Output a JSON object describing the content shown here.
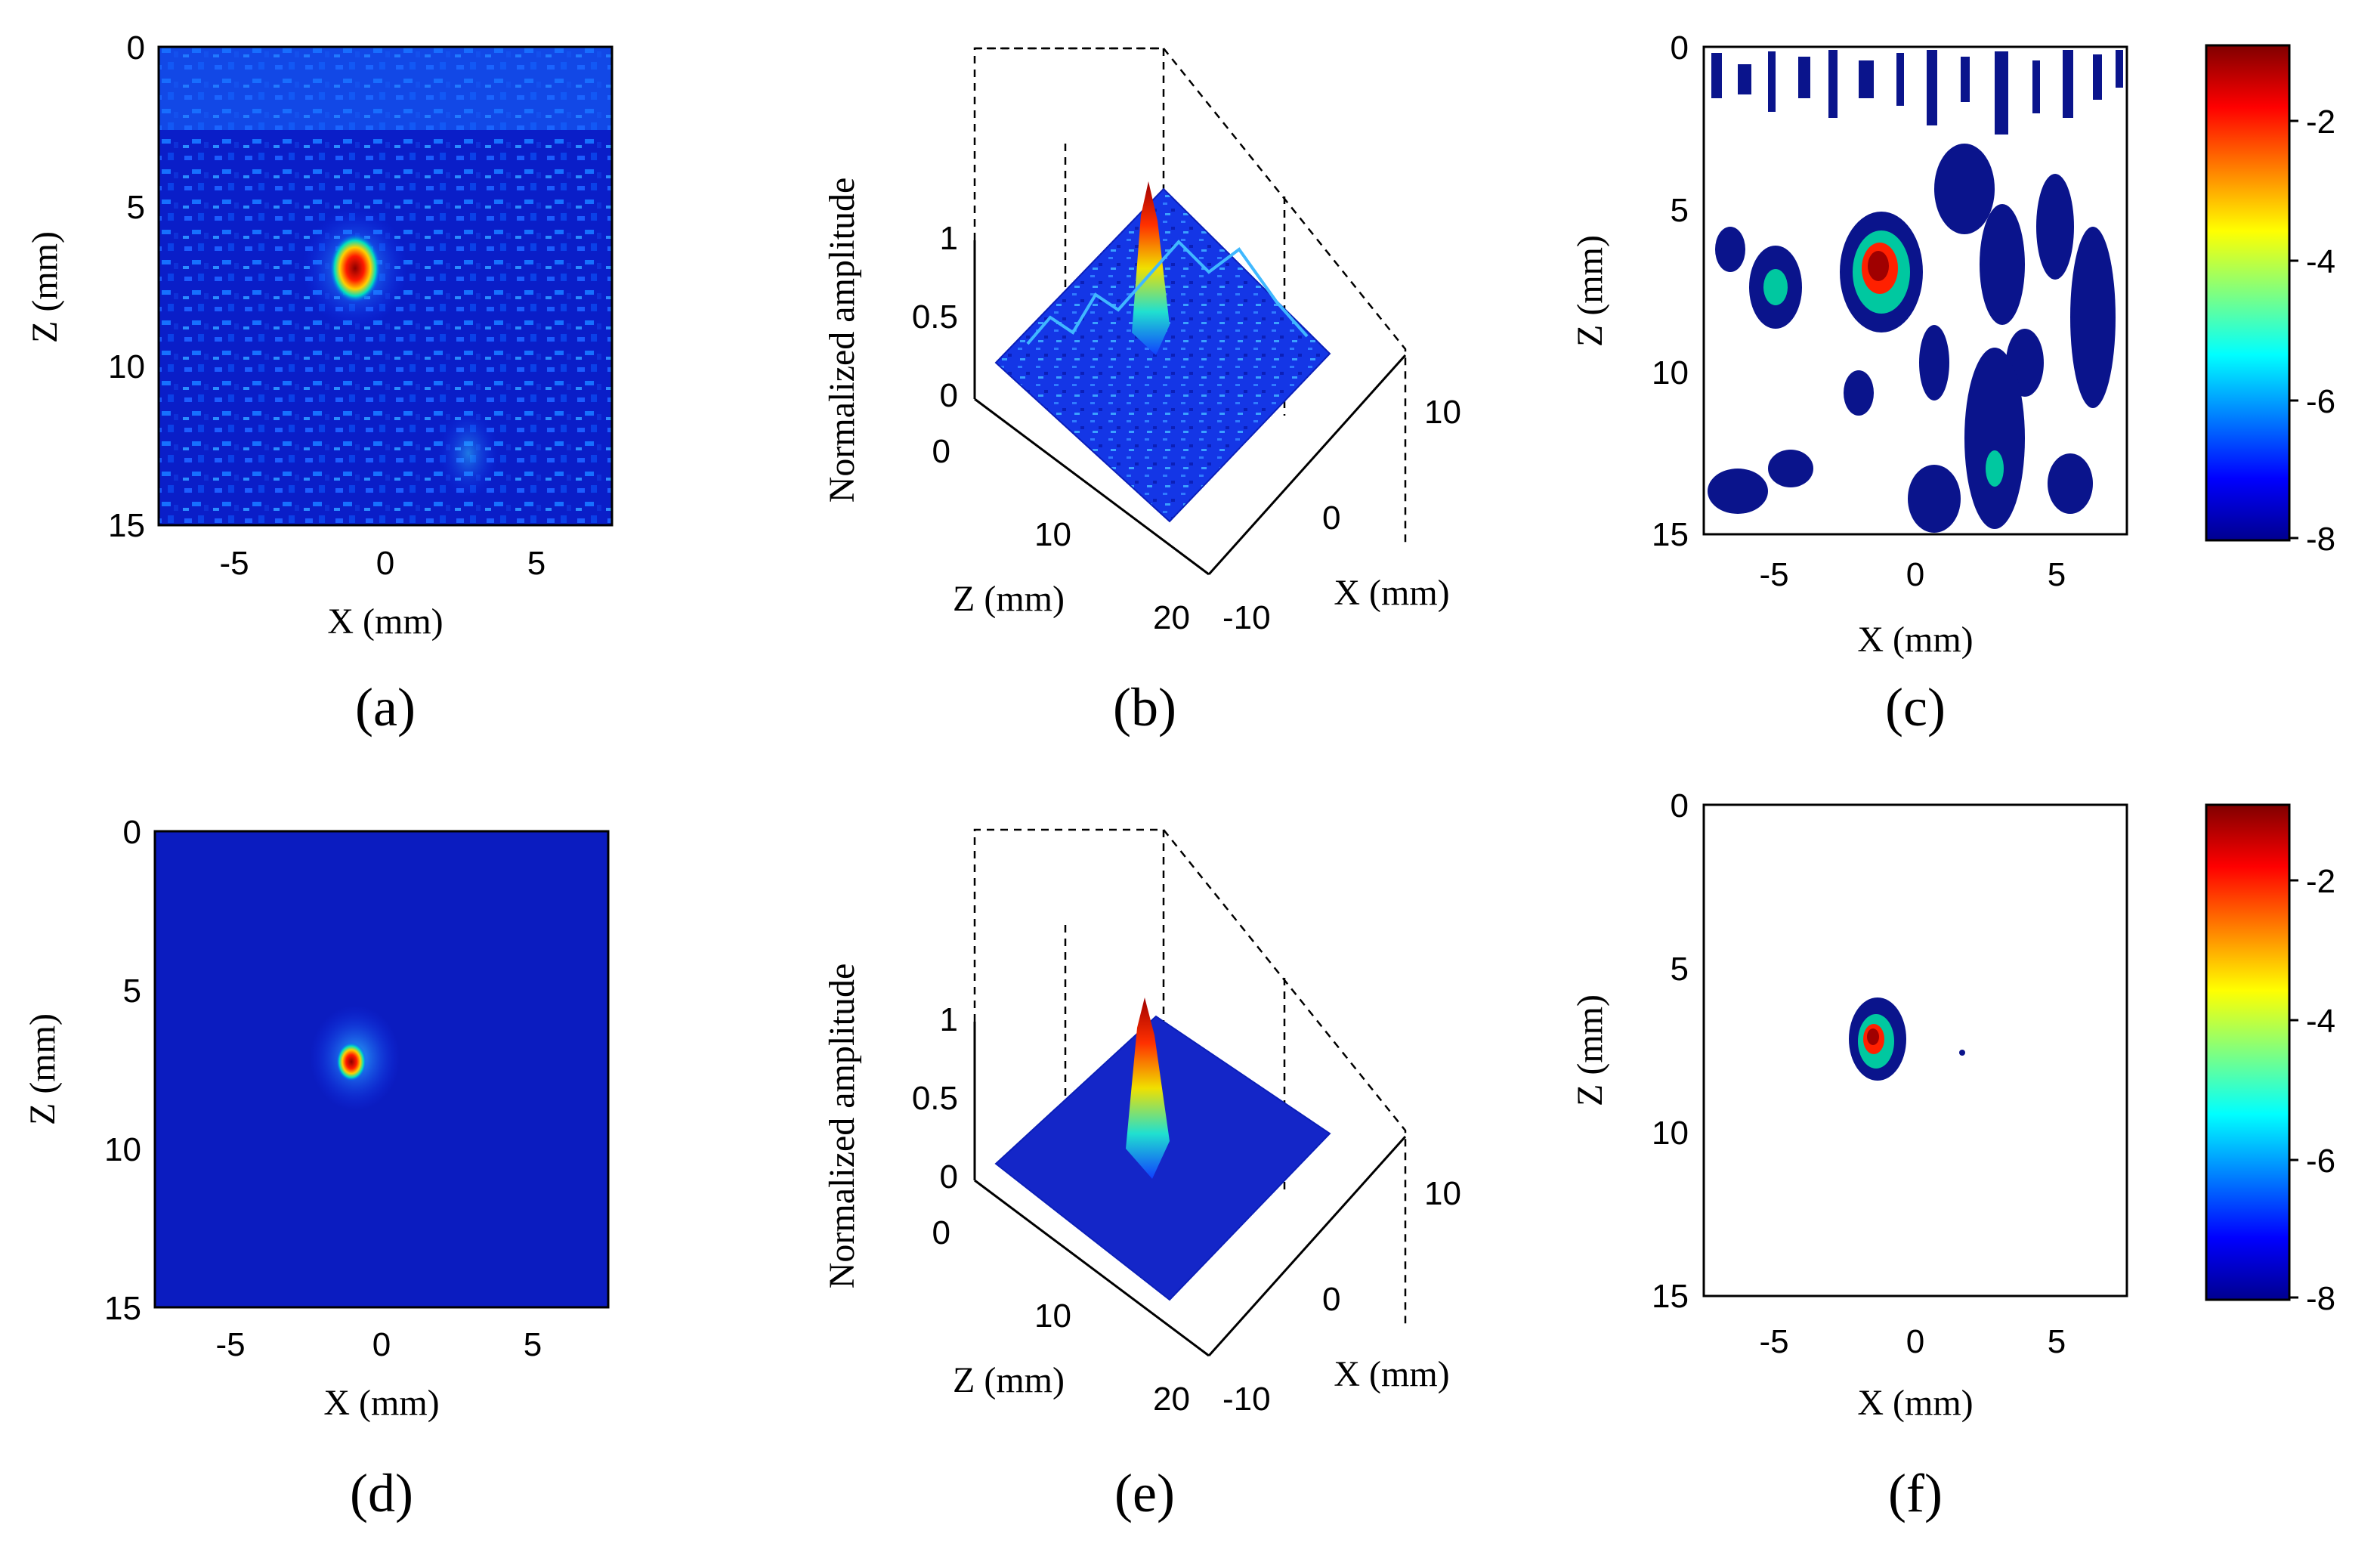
{
  "figure_description_labels": {
    "normalized_amplitude": "Normalized amplitude"
  },
  "colors": {
    "map_background": "#0b0fb0",
    "map_mid": "#1a3cff",
    "hot": "#c40000",
    "frame": "#000000"
  },
  "chart_data": [
    {
      "id": "a",
      "panel_label": "(a)",
      "type": "heatmap",
      "xlabel": "X (mm)",
      "ylabel": "Z (mm)",
      "xlim": [
        -7.5,
        7.5
      ],
      "ylim": [
        0,
        15
      ],
      "x_ticks": [
        -5,
        0,
        5
      ],
      "y_ticks": [
        0,
        5,
        10,
        15
      ],
      "x_tick_labels": [
        "-5",
        "0",
        "5"
      ],
      "y_tick_labels": [
        "0",
        "5",
        "10",
        "15"
      ],
      "peak": {
        "x": -1,
        "z": 7,
        "value": 1.0
      },
      "noise_level": "high"
    },
    {
      "id": "b",
      "panel_label": "(b)",
      "type": "surface3d",
      "zlabel": "Normalized amplitude",
      "xlabel": "X (mm)",
      "ylabel": "Z (mm)",
      "amp_ticks": [
        "0",
        "0.5",
        "1"
      ],
      "z_ticks": [
        "0",
        "10",
        "20"
      ],
      "x_ticks": [
        "-10",
        "0",
        "10"
      ],
      "peak": {
        "x": -1,
        "z": 7,
        "value": 1.0
      },
      "noise_level": "high"
    },
    {
      "id": "c",
      "panel_label": "(c)",
      "type": "contour",
      "xlabel": "X (mm)",
      "ylabel": "Z (mm)",
      "xlim": [
        -7.5,
        7.5
      ],
      "ylim": [
        0,
        15
      ],
      "x_tick_labels": [
        "-5",
        "0",
        "5"
      ],
      "y_tick_labels": [
        "0",
        "5",
        "10",
        "15"
      ],
      "colorbar": {
        "range": [
          -8,
          -1
        ],
        "tick_labels": [
          "-2",
          "-4",
          "-6",
          "-8"
        ]
      },
      "noise_level": "high"
    },
    {
      "id": "d",
      "panel_label": "(d)",
      "type": "heatmap",
      "xlabel": "X (mm)",
      "ylabel": "Z (mm)",
      "xlim": [
        -7.5,
        7.5
      ],
      "ylim": [
        0,
        15
      ],
      "x_tick_labels": [
        "-5",
        "0",
        "5"
      ],
      "y_tick_labels": [
        "0",
        "5",
        "10",
        "15"
      ],
      "peak": {
        "x": -1,
        "z": 7.3,
        "value": 1.0
      },
      "noise_level": "low"
    },
    {
      "id": "e",
      "panel_label": "(e)",
      "type": "surface3d",
      "zlabel": "Normalized amplitude",
      "xlabel": "X (mm)",
      "ylabel": "Z (mm)",
      "amp_ticks": [
        "0",
        "0.5",
        "1"
      ],
      "z_ticks": [
        "0",
        "10",
        "20"
      ],
      "x_ticks": [
        "-10",
        "0",
        "10"
      ],
      "peak": {
        "x": -1,
        "z": 7,
        "value": 1.0
      },
      "noise_level": "low"
    },
    {
      "id": "f",
      "panel_label": "(f)",
      "type": "contour",
      "xlabel": "X (mm)",
      "ylabel": "Z (mm)",
      "xlim": [
        -7.5,
        7.5
      ],
      "ylim": [
        0,
        15
      ],
      "x_tick_labels": [
        "-5",
        "0",
        "5"
      ],
      "y_tick_labels": [
        "0",
        "5",
        "10",
        "15"
      ],
      "colorbar": {
        "range": [
          -8,
          -1
        ],
        "tick_labels": [
          "-2",
          "-4",
          "-6",
          "-8"
        ]
      },
      "noise_level": "low"
    }
  ]
}
